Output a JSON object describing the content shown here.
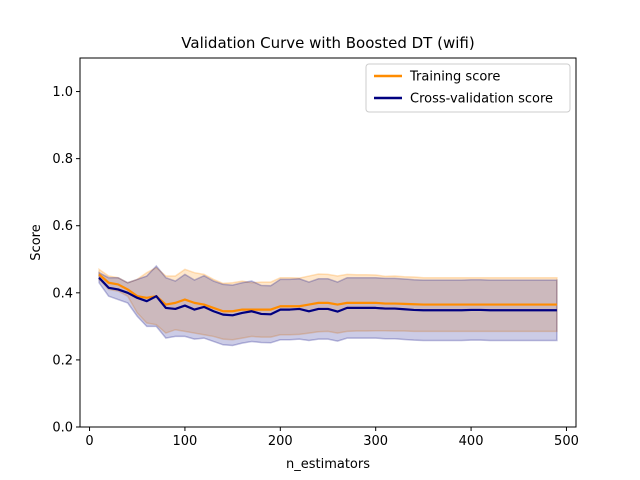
{
  "chart_data": {
    "type": "line",
    "title": "Validation Curve with Boosted DT (wifi)",
    "xlabel": "n_estimators",
    "ylabel": "Score",
    "xlim": [
      -10,
      510
    ],
    "ylim": [
      0.0,
      1.1
    ],
    "xticks": [
      "0",
      "100",
      "200",
      "300",
      "400",
      "500"
    ],
    "yticks": [
      "0.0",
      "0.2",
      "0.4",
      "0.6",
      "0.8",
      "1.0"
    ],
    "legend_position": "top-right",
    "x": [
      10,
      20,
      30,
      40,
      50,
      60,
      70,
      80,
      90,
      100,
      110,
      120,
      130,
      140,
      150,
      160,
      170,
      180,
      190,
      200,
      210,
      220,
      230,
      240,
      250,
      260,
      270,
      280,
      290,
      300,
      310,
      320,
      330,
      340,
      350,
      360,
      370,
      380,
      390,
      400,
      410,
      420,
      430,
      440,
      450,
      460,
      470,
      480,
      490
    ],
    "series": [
      {
        "name": "Training score",
        "color": "#ff8c00",
        "values": [
          0.455,
          0.43,
          0.425,
          0.41,
          0.39,
          0.385,
          0.39,
          0.365,
          0.37,
          0.38,
          0.37,
          0.365,
          0.355,
          0.345,
          0.345,
          0.35,
          0.35,
          0.35,
          0.35,
          0.36,
          0.36,
          0.36,
          0.365,
          0.37,
          0.37,
          0.365,
          0.37,
          0.37,
          0.37,
          0.37,
          0.368,
          0.368,
          0.367,
          0.366,
          0.365,
          0.365,
          0.365,
          0.365,
          0.365,
          0.365,
          0.365,
          0.365,
          0.365,
          0.365,
          0.365,
          0.365,
          0.365,
          0.365,
          0.365
        ],
        "lower": [
          0.44,
          0.41,
          0.405,
          0.39,
          0.34,
          0.31,
          0.305,
          0.28,
          0.29,
          0.285,
          0.28,
          0.275,
          0.27,
          0.262,
          0.26,
          0.265,
          0.27,
          0.268,
          0.268,
          0.275,
          0.275,
          0.276,
          0.28,
          0.284,
          0.285,
          0.28,
          0.285,
          0.286,
          0.286,
          0.287,
          0.287,
          0.286,
          0.286,
          0.285,
          0.285,
          0.285,
          0.285,
          0.285,
          0.285,
          0.285,
          0.285,
          0.285,
          0.285,
          0.285,
          0.285,
          0.285,
          0.285,
          0.285,
          0.285
        ],
        "upper": [
          0.47,
          0.45,
          0.445,
          0.43,
          0.44,
          0.46,
          0.475,
          0.45,
          0.45,
          0.47,
          0.46,
          0.455,
          0.44,
          0.428,
          0.43,
          0.435,
          0.43,
          0.432,
          0.432,
          0.445,
          0.445,
          0.444,
          0.45,
          0.456,
          0.455,
          0.45,
          0.455,
          0.454,
          0.454,
          0.453,
          0.449,
          0.45,
          0.448,
          0.447,
          0.445,
          0.445,
          0.445,
          0.445,
          0.445,
          0.445,
          0.445,
          0.445,
          0.445,
          0.445,
          0.445,
          0.445,
          0.445,
          0.445,
          0.445
        ]
      },
      {
        "name": "Cross-validation score",
        "color": "#000080",
        "values": [
          0.445,
          0.415,
          0.41,
          0.4,
          0.385,
          0.375,
          0.39,
          0.355,
          0.352,
          0.362,
          0.35,
          0.358,
          0.345,
          0.335,
          0.333,
          0.34,
          0.345,
          0.337,
          0.336,
          0.35,
          0.35,
          0.352,
          0.345,
          0.352,
          0.352,
          0.344,
          0.355,
          0.355,
          0.355,
          0.355,
          0.353,
          0.353,
          0.351,
          0.349,
          0.348,
          0.348,
          0.348,
          0.348,
          0.348,
          0.349,
          0.349,
          0.348,
          0.348,
          0.348,
          0.348,
          0.348,
          0.348,
          0.348,
          0.348
        ],
        "lower": [
          0.43,
          0.39,
          0.38,
          0.37,
          0.33,
          0.3,
          0.3,
          0.265,
          0.27,
          0.27,
          0.262,
          0.265,
          0.255,
          0.245,
          0.243,
          0.25,
          0.255,
          0.252,
          0.251,
          0.26,
          0.26,
          0.262,
          0.258,
          0.262,
          0.262,
          0.256,
          0.265,
          0.265,
          0.265,
          0.265,
          0.263,
          0.263,
          0.261,
          0.259,
          0.258,
          0.258,
          0.258,
          0.258,
          0.258,
          0.259,
          0.259,
          0.258,
          0.258,
          0.258,
          0.258,
          0.258,
          0.258,
          0.258,
          0.258
        ],
        "upper": [
          0.46,
          0.445,
          0.445,
          0.43,
          0.44,
          0.45,
          0.48,
          0.445,
          0.435,
          0.455,
          0.438,
          0.451,
          0.435,
          0.425,
          0.423,
          0.43,
          0.435,
          0.422,
          0.421,
          0.44,
          0.44,
          0.442,
          0.432,
          0.442,
          0.442,
          0.432,
          0.445,
          0.445,
          0.445,
          0.445,
          0.443,
          0.443,
          0.441,
          0.439,
          0.438,
          0.438,
          0.438,
          0.438,
          0.438,
          0.439,
          0.439,
          0.438,
          0.438,
          0.438,
          0.438,
          0.438,
          0.438,
          0.438,
          0.438
        ]
      }
    ]
  }
}
